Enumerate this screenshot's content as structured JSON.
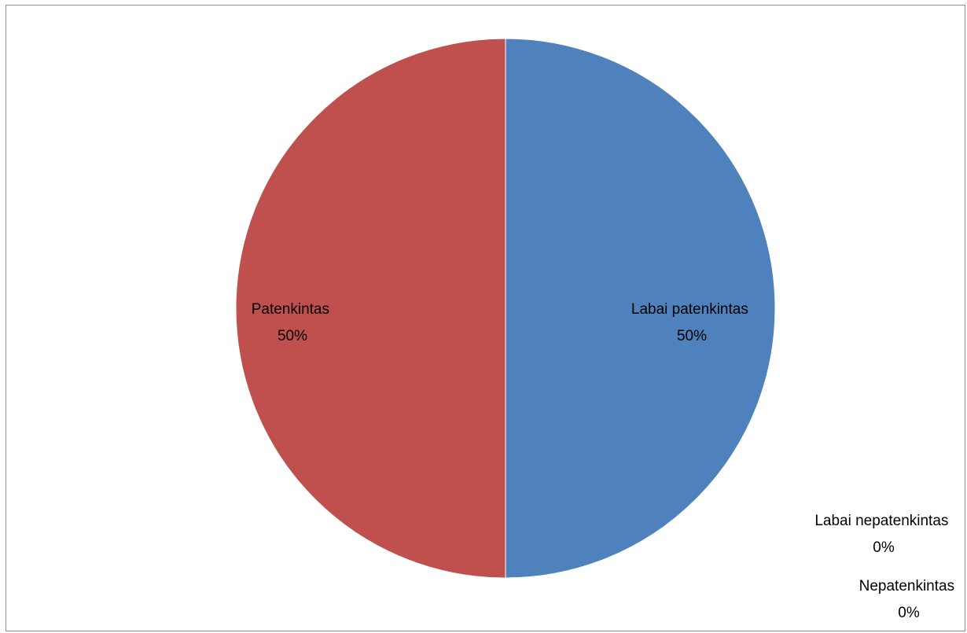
{
  "chart_data": {
    "type": "pie",
    "title": "",
    "start_angle": "top",
    "direction": "clockwise",
    "legend": "none",
    "slices": [
      {
        "name": "Labai patenkintas",
        "value": 50,
        "label": "50%",
        "color": "#4F81BD"
      },
      {
        "name": "Patenkintas",
        "value": 50,
        "label": "50%",
        "color": "#C0504D"
      },
      {
        "name": "Labai nepatenkintas",
        "value": 0,
        "label": "0%",
        "color": "#9BBB59"
      },
      {
        "name": "Nepatenkintas",
        "value": 0,
        "label": "0%",
        "color": "#8064A2"
      }
    ]
  }
}
